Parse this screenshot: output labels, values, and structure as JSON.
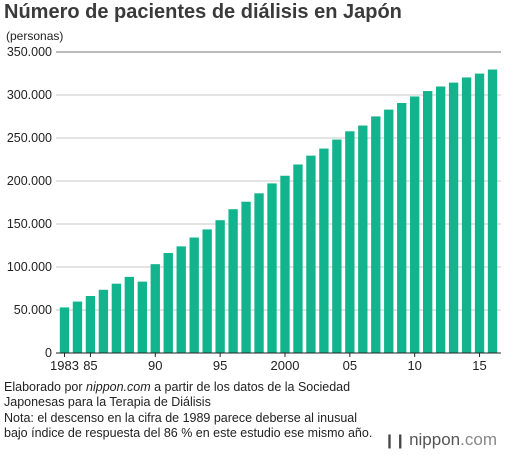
{
  "title": "Número de pacientes de diálisis en Japón",
  "colors": {
    "bar": "#12b48d",
    "grid": "#c9c9c9",
    "axis": "#222222",
    "text": "#222222"
  },
  "notes": {
    "source_prefix": "Elaborado por",
    "source_site": "nippon.com",
    "source_rest": "a partir de los datos de la Sociedad Japonesas para la Terapia de Diálisis",
    "note": "Nota: el descenso en la cifra de 1989 parece deberse al inusual bajo índice de respuesta del 86 % en este estudio ese mismo año."
  },
  "logo": {
    "name": "nippon",
    "dot": ".",
    "suffix": "com",
    "icon": "bars-icon"
  },
  "chart_data": {
    "type": "bar",
    "title": "Número de pacientes de diálisis en Japón",
    "ylabel": "(personas)",
    "xlabel": "",
    "ylim": [
      0,
      350000
    ],
    "yticks": [
      0,
      50000,
      100000,
      150000,
      200000,
      250000,
      300000,
      350000
    ],
    "ytick_labels": [
      "0",
      "50.000",
      "100.000",
      "150.000",
      "200.000",
      "250.000",
      "300.000",
      "350.000"
    ],
    "xtick_labels": [
      {
        "category": 1983,
        "label": "1983"
      },
      {
        "category": 1985,
        "label": "85"
      },
      {
        "category": 1990,
        "label": "90"
      },
      {
        "category": 1995,
        "label": "95"
      },
      {
        "category": 2000,
        "label": "2000"
      },
      {
        "category": 2005,
        "label": "05"
      },
      {
        "category": 2010,
        "label": "10"
      },
      {
        "category": 2015,
        "label": "15"
      }
    ],
    "grid": true,
    "categories": [
      1983,
      1984,
      1985,
      1986,
      1987,
      1988,
      1989,
      1990,
      1991,
      1992,
      1993,
      1994,
      1995,
      1996,
      1997,
      1998,
      1999,
      2000,
      2001,
      2002,
      2003,
      2004,
      2005,
      2006,
      2007,
      2008,
      2009,
      2010,
      2011,
      2012,
      2013,
      2014,
      2015,
      2016
    ],
    "values": [
      53000,
      59800,
      66300,
      73500,
      80600,
      88500,
      83000,
      103300,
      116300,
      124000,
      134300,
      143700,
      154400,
      167200,
      175900,
      185700,
      197200,
      206100,
      219200,
      229500,
      237700,
      248200,
      257800,
      264500,
      275100,
      283000,
      290700,
      298300,
      304600,
      309900,
      314400,
      320400,
      324900,
      329600
    ]
  }
}
